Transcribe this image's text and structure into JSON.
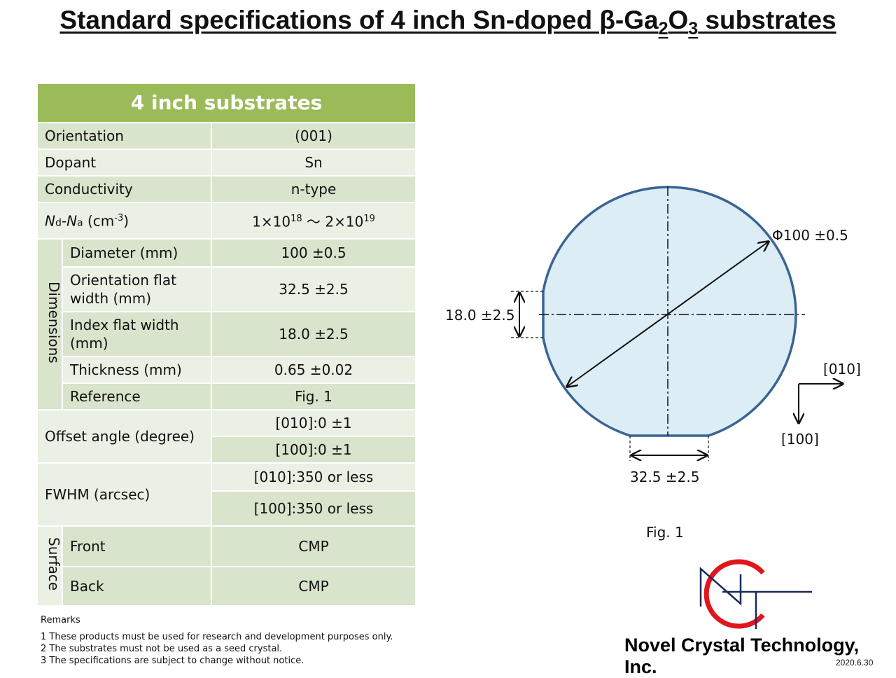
{
  "title": {
    "main": "Standard specifications of 4 inch Sn-doped β-Ga",
    "sub1": "2",
    "mid": "O",
    "sub2": "3",
    "end": " substrates"
  },
  "table": {
    "header": "4 inch substrates",
    "orientation": {
      "label": "Orientation",
      "value": "(001)"
    },
    "dopant": {
      "label": "Dopant",
      "value": "Sn"
    },
    "conductivity": {
      "label": "Conductivity",
      "value": "n-type"
    },
    "ndna": {
      "label_nd": "N",
      "label_d": "d",
      "label_dash": "-",
      "label_na": "N",
      "label_a": "a",
      "label_unit": " (cm",
      "label_exp": "-3",
      "label_close": ")",
      "value_a": "1×10",
      "value_a_exp": "18",
      "value_sep": " ～ ",
      "value_b": "2×10",
      "value_b_exp": "19"
    },
    "dimensions": {
      "group_label": "Dimensions",
      "rows": [
        {
          "label": "Diameter (mm)",
          "value": "100 ±0.5"
        },
        {
          "label": "Orientation flat width (mm)",
          "value": "32.5 ±2.5"
        },
        {
          "label": "Index flat width (mm)",
          "value": "18.0 ±2.5"
        },
        {
          "label": "Thickness (mm)",
          "value": "0.65 ±0.02"
        },
        {
          "label": "Reference",
          "value": "Fig. 1"
        }
      ]
    },
    "offset": {
      "label": "Offset angle (degree)",
      "values": [
        "[010]:0 ±1",
        "[100]:0 ±1"
      ]
    },
    "fwhm": {
      "label": "FWHM (arcsec)",
      "values": [
        "[010]:350 or less",
        "[100]:350 or less"
      ]
    },
    "surface": {
      "group_label": "Surface",
      "rows": [
        {
          "label": "Front",
          "value": "CMP"
        },
        {
          "label": "Back",
          "value": "CMP"
        }
      ]
    }
  },
  "remarks": {
    "title": "Remarks",
    "items": [
      "1 These products must be used for research and development purposes only.",
      "2 The substrates must not be used as a seed crystal.",
      "3 The specifications are subject to change without notice."
    ]
  },
  "figure": {
    "diameter_label": "Φ100 ±0.5",
    "index_flat_label": "18.0 ±2.5",
    "orientation_flat_label": "32.5 ±2.5",
    "axis_010": "[010]",
    "axis_100": "[100]",
    "caption": "Fig. 1",
    "wafer_fill": "#dcedf5",
    "wafer_stroke": "#3a6494"
  },
  "company": {
    "name": "Novel Crystal Technology, Inc.",
    "date": "2020.6.30",
    "logo_red": "#e0161c",
    "logo_navy": "#1a2a5a"
  }
}
